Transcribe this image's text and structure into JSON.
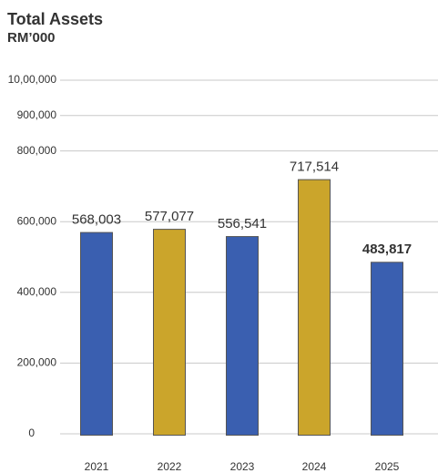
{
  "chart_data": {
    "type": "bar",
    "title": "Total Assets",
    "subtitle": "RM’000",
    "categories": [
      "2021",
      "2022",
      "2023",
      "2024",
      "2025"
    ],
    "values": [
      568003,
      577077,
      556541,
      717514,
      483817
    ],
    "value_labels": [
      "568,003",
      "577,077",
      "556,541",
      "717,514",
      "483,817"
    ],
    "colors": [
      "#3a5fb0",
      "#cba52b",
      "#3a5fb0",
      "#cba52b",
      "#3a5fb0"
    ],
    "ylim": [
      0,
      1000000
    ],
    "yticks": [
      0,
      {
        "value": 200000,
        "label": "200,000"
      },
      {
        "value": 400000,
        "label": "400,000"
      },
      {
        "value": 600000,
        "label": "600,000"
      },
      {
        "value": 800000,
        "label": "800,000"
      },
      {
        "value": 900000,
        "label": "900,000"
      },
      {
        "value": 1000000,
        "label": "10,00,000"
      }
    ],
    "grid": true
  }
}
